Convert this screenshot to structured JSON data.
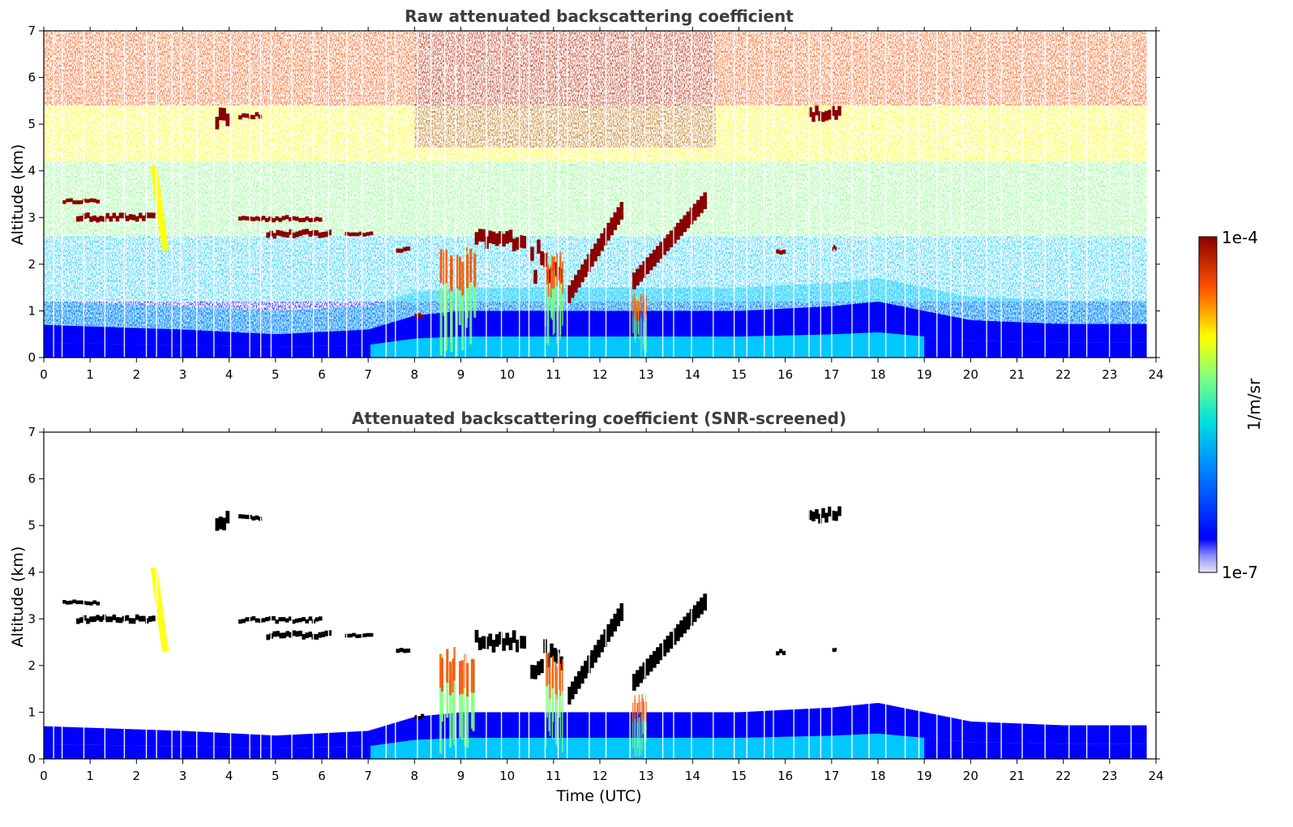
{
  "chart_data": [
    {
      "type": "heatmap",
      "title": "Raw attenuated backscattering coefficient",
      "ylabel": "Altitude (km)",
      "xlabel": "",
      "xlim": [
        0,
        24
      ],
      "ylim": [
        0,
        7
      ],
      "x_ticks": [
        "0",
        "1",
        "2",
        "3",
        "4",
        "5",
        "6",
        "7",
        "8",
        "9",
        "10",
        "11",
        "12",
        "13",
        "14",
        "15",
        "16",
        "17",
        "18",
        "19",
        "20",
        "21",
        "22",
        "23",
        "24"
      ],
      "y_ticks": [
        "0",
        "1",
        "2",
        "3",
        "4",
        "5",
        "6",
        "7"
      ],
      "data_end_time": 23.8,
      "boundary_layer_height": [
        [
          0,
          0.7
        ],
        [
          3,
          0.6
        ],
        [
          5,
          0.5
        ],
        [
          7,
          0.6
        ],
        [
          8,
          0.9
        ],
        [
          9,
          1.0
        ],
        [
          12,
          1.0
        ],
        [
          15,
          1.0
        ],
        [
          17,
          1.1
        ],
        [
          18,
          1.2
        ],
        [
          20,
          0.8
        ],
        [
          22,
          0.72
        ],
        [
          23.8,
          0.72
        ]
      ],
      "features": [
        {
          "kind": "cloud_layer",
          "x": [
            0.4,
            1.2
          ],
          "y": [
            3.3,
            3.4
          ]
        },
        {
          "kind": "cloud_layer",
          "x": [
            0.7,
            2.4
          ],
          "y": [
            2.9,
            3.1
          ]
        },
        {
          "kind": "fall_streak",
          "x": [
            2.3,
            2.7
          ],
          "y": [
            2.3,
            4.1
          ]
        },
        {
          "kind": "cloud_layer",
          "x": [
            3.7,
            4.0
          ],
          "y": [
            4.9,
            5.35
          ]
        },
        {
          "kind": "cloud_layer",
          "x": [
            4.2,
            4.7
          ],
          "y": [
            5.1,
            5.25
          ]
        },
        {
          "kind": "cloud_layer",
          "x": [
            4.2,
            6.0
          ],
          "y": [
            2.9,
            3.05
          ]
        },
        {
          "kind": "cloud_layer",
          "x": [
            4.8,
            6.2
          ],
          "y": [
            2.55,
            2.75
          ]
        },
        {
          "kind": "cloud_layer",
          "x": [
            6.5,
            7.1
          ],
          "y": [
            2.6,
            2.7
          ]
        },
        {
          "kind": "cloud_layer",
          "x": [
            7.6,
            7.9
          ],
          "y": [
            2.25,
            2.4
          ]
        },
        {
          "kind": "cloud_layer",
          "x": [
            8.0,
            8.2
          ],
          "y": [
            0.85,
            0.95
          ]
        },
        {
          "kind": "convective_plume",
          "x": [
            8.5,
            9.3
          ],
          "y": [
            0.0,
            2.4
          ]
        },
        {
          "kind": "cloud_layer",
          "x": [
            9.3,
            10.4
          ],
          "y": [
            2.3,
            2.75
          ]
        },
        {
          "kind": "cloud_layer",
          "x": [
            10.5,
            11.2
          ],
          "y": [
            1.3,
            2.8
          ]
        },
        {
          "kind": "convective_plume",
          "x": [
            10.8,
            11.2
          ],
          "y": [
            0.0,
            2.3
          ]
        },
        {
          "kind": "cloud_layer",
          "x": [
            11.3,
            12.5
          ],
          "y": [
            1.3,
            3.2
          ]
        },
        {
          "kind": "convective_plume",
          "x": [
            12.7,
            13.0
          ],
          "y": [
            0.0,
            1.4
          ]
        },
        {
          "kind": "cloud_layer",
          "x": [
            12.7,
            14.3
          ],
          "y": [
            1.6,
            3.4
          ]
        },
        {
          "kind": "cloud_layer",
          "x": [
            15.8,
            16.0
          ],
          "y": [
            2.2,
            2.35
          ]
        },
        {
          "kind": "cloud_layer",
          "x": [
            16.5,
            17.2
          ],
          "y": [
            5.05,
            5.4
          ]
        },
        {
          "kind": "cloud_layer",
          "x": [
            17.0,
            17.1
          ],
          "y": [
            2.3,
            2.4
          ]
        }
      ]
    },
    {
      "type": "heatmap",
      "title": "Attenuated backscattering coefficient (SNR-screened)",
      "ylabel": "Altitude (km)",
      "xlabel": "Time (UTC)",
      "xlim": [
        0,
        24
      ],
      "ylim": [
        0,
        7
      ],
      "x_ticks": [
        "0",
        "1",
        "2",
        "3",
        "4",
        "5",
        "6",
        "7",
        "8",
        "9",
        "10",
        "11",
        "12",
        "13",
        "14",
        "15",
        "16",
        "17",
        "18",
        "19",
        "20",
        "21",
        "22",
        "23",
        "24"
      ],
      "y_ticks": [
        "0",
        "1",
        "2",
        "3",
        "4",
        "5",
        "6",
        "7"
      ],
      "screening": "pixels below SNR threshold removed (white); above-range pixels in black"
    }
  ],
  "colorbar": {
    "label": "1/m/sr",
    "max_label": "1e-4",
    "min_label": "1e-7",
    "scale": "log",
    "colormap": "jet",
    "colors": [
      "#e6e6f7",
      "#0000ff",
      "#00c8ff",
      "#7fff7f",
      "#ffff00",
      "#ff5000",
      "#8b0000"
    ]
  }
}
